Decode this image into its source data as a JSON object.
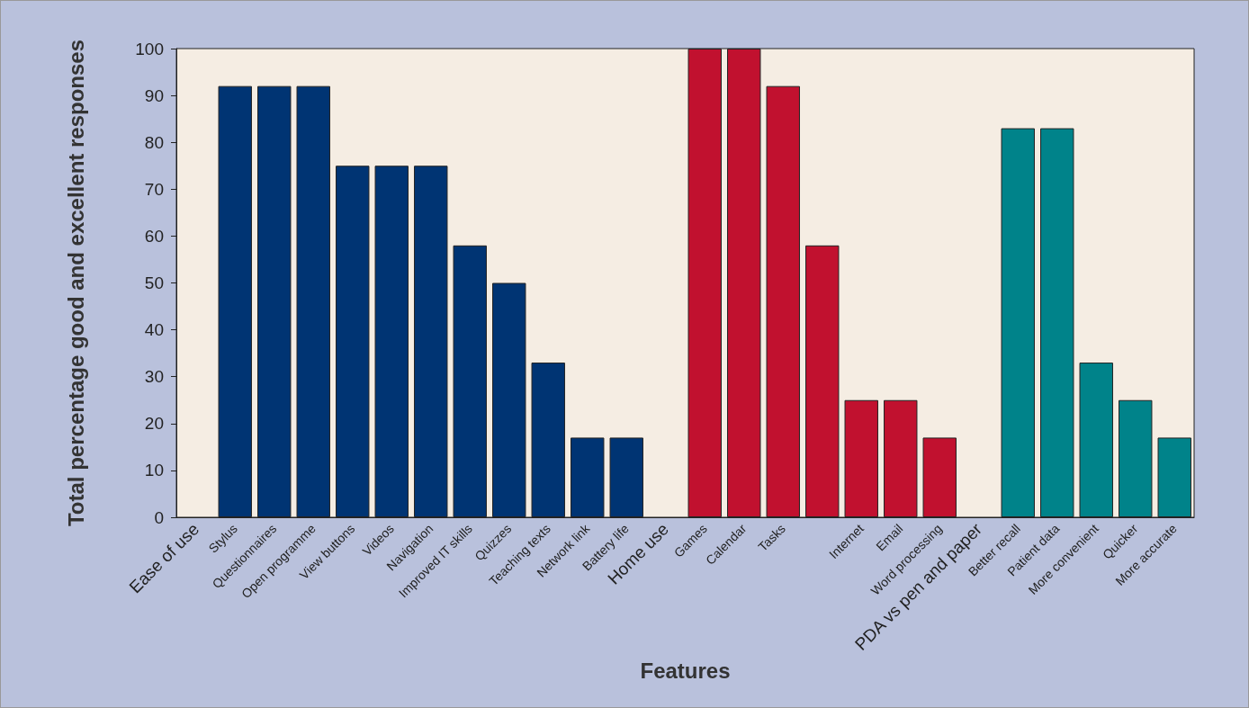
{
  "chart_data": {
    "type": "bar",
    "xlabel": "Features",
    "ylabel": "Total percentage good and excellent responses",
    "categories": [
      "Ease of use",
      "Stylus",
      "Questionnaires",
      "Open programme",
      "View buttons",
      "Videos",
      "Navigation",
      "Improved IT skills",
      "Quizzes",
      "Teaching texts",
      "Network link",
      "Battery life",
      "Home use",
      "Games",
      "Calendar",
      "Tasks",
      null,
      "Internet",
      "Email",
      "Word processing",
      "PDA vs pen and paper",
      "Better recall",
      "Patient data",
      "More convenient",
      "Quicker",
      "More accurate"
    ],
    "values": [
      null,
      92,
      92,
      92,
      75,
      75,
      75,
      58,
      50,
      33,
      17,
      17,
      null,
      100,
      100,
      92,
      58,
      25,
      25,
      17,
      null,
      83,
      83,
      33,
      25,
      17
    ],
    "colors": [
      "#003473",
      "#003473",
      "#003473",
      "#003473",
      "#003473",
      "#003473",
      "#003473",
      "#003473",
      "#003473",
      "#003473",
      "#003473",
      "#003473",
      "#c1112f",
      "#c1112f",
      "#c1112f",
      "#c1112f",
      "#c1112f",
      "#c1112f",
      "#c1112f",
      "#c1112f",
      "#00838a",
      "#00838a",
      "#00838a",
      "#00838a",
      "#00838a",
      "#00838a"
    ],
    "ylim": [
      0,
      100
    ],
    "yticks": [
      0,
      10,
      20,
      30,
      40,
      50,
      60,
      70,
      80,
      90,
      100
    ],
    "grid": false
  }
}
